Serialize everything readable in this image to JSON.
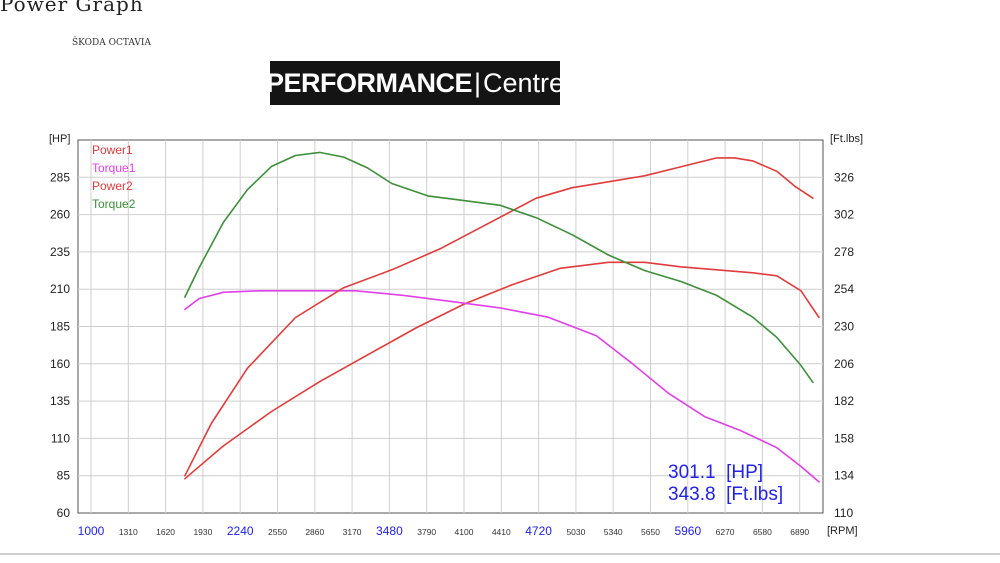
{
  "page_title": "Power Graph",
  "car_model": "ŠKODA OCTAVIA",
  "logo": {
    "bold": "PERFORMANCE",
    "separator": "|",
    "light": "Centre"
  },
  "units": {
    "left": "[HP]",
    "right": "[Ft.lbs]",
    "x": "[RPM]"
  },
  "readout": {
    "hp_value": "301.1",
    "hp_unit": "[HP]",
    "tq_value": "343.8",
    "tq_unit": "[Ft.lbs]"
  },
  "colors": {
    "power": "#e03c3c",
    "torque1": "#e040e8",
    "torque2": "#3d8f3a",
    "highlight_ticks": "#2222e6",
    "grid": "#cfcfcf"
  },
  "chart_data": {
    "type": "line",
    "xlabel": "[RPM]",
    "ylabel": "[HP]",
    "y2label": "[Ft.lbs]",
    "xlim": [
      1000,
      7200
    ],
    "ylim": [
      60,
      310
    ],
    "y2lim": [
      110,
      350
    ],
    "grid": true,
    "legend_position": "top-left",
    "x_ticks": [
      1000,
      1310,
      1620,
      1930,
      2240,
      2550,
      2860,
      3170,
      3480,
      3790,
      4100,
      4410,
      4720,
      5030,
      5340,
      5650,
      5960,
      6270,
      6580,
      6890
    ],
    "x_ticks_highlighted": [
      1000,
      2240,
      3480,
      4720,
      5960
    ],
    "y_ticks": [
      60,
      85,
      110,
      135,
      160,
      185,
      210,
      235,
      260,
      285
    ],
    "y2_ticks": [
      110,
      134,
      158,
      182,
      206,
      230,
      254,
      278,
      302,
      326
    ],
    "series": [
      {
        "name": "Power1",
        "axis": "left",
        "color": "#e03c3c",
        "x": [
          1780,
          2100,
          2500,
          2900,
          3300,
          3700,
          4100,
          4500,
          4900,
          5300,
          5600,
          5900,
          6200,
          6500,
          6700,
          6900,
          7050
        ],
        "y": [
          83,
          105,
          128,
          148,
          166,
          184,
          200,
          213,
          224,
          228,
          228,
          225,
          223,
          221,
          219,
          209,
          191
        ]
      },
      {
        "name": "Torque1",
        "axis": "right",
        "color": "#e040e8",
        "x": [
          1780,
          1900,
          2100,
          2400,
          2800,
          3200,
          3600,
          4000,
          4400,
          4800,
          5200,
          5500,
          5800,
          6100,
          6400,
          6700,
          6900,
          7050
        ],
        "y": [
          241,
          248,
          252,
          253,
          253,
          253,
          250,
          246,
          242,
          236,
          224,
          206,
          187,
          172,
          163,
          152,
          140,
          130
        ]
      },
      {
        "name": "Power2",
        "axis": "left",
        "color": "#e03c3c",
        "x": [
          1780,
          2000,
          2300,
          2700,
          3100,
          3500,
          3900,
          4300,
          4700,
          5000,
          5300,
          5600,
          5900,
          6200,
          6350,
          6500,
          6700,
          6850,
          7000
        ],
        "y": [
          85,
          120,
          157,
          191,
          211,
          223,
          237,
          254,
          271,
          278,
          282,
          286,
          292,
          298,
          298,
          296,
          289,
          279,
          271
        ]
      },
      {
        "name": "Torque2",
        "axis": "right",
        "color": "#3d8f3a",
        "x": [
          1780,
          1900,
          2100,
          2300,
          2500,
          2700,
          2900,
          3100,
          3300,
          3500,
          3800,
          4100,
          4400,
          4700,
          5000,
          5300,
          5600,
          5900,
          6200,
          6500,
          6700,
          6900,
          7000
        ],
        "y": [
          249,
          268,
          297,
          318,
          333,
          340,
          342,
          339,
          332,
          322,
          314,
          311,
          308,
          300,
          289,
          276,
          266,
          259,
          250,
          236,
          223,
          205,
          194
        ]
      }
    ]
  }
}
